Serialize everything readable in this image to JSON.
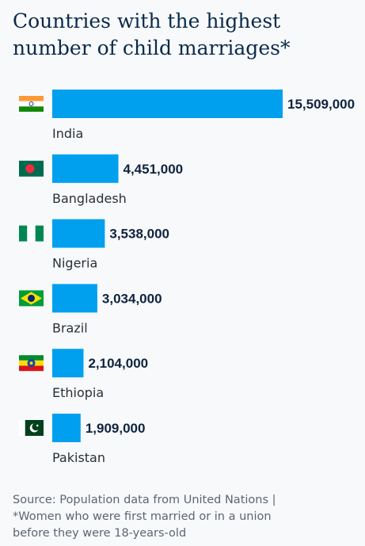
{
  "chart_data": {
    "type": "bar",
    "orientation": "horizontal",
    "title": "Countries with the highest number of child marriages*",
    "categories": [
      "India",
      "Bangladesh",
      "Nigeria",
      "Brazil",
      "Ethiopia",
      "Pakistan"
    ],
    "values": [
      15509000,
      4451000,
      3538000,
      3034000,
      2104000,
      1909000
    ],
    "value_labels": [
      "15,509,000",
      "4,451,000",
      "3,538,000",
      "3,034,000",
      "2,104,000",
      "1,909,000"
    ],
    "flag_icons": [
      "india-flag-icon",
      "bangladesh-flag-icon",
      "nigeria-flag-icon",
      "brazil-flag-icon",
      "ethiopia-flag-icon",
      "pakistan-flag-icon"
    ],
    "bar_color": "#00a0ef",
    "grid": false,
    "legend": "none"
  },
  "source": {
    "line1": "Source: Population data from United Nations |",
    "line2": "*Women who were first married or in a union",
    "line3": "before they were 18-years-old"
  }
}
